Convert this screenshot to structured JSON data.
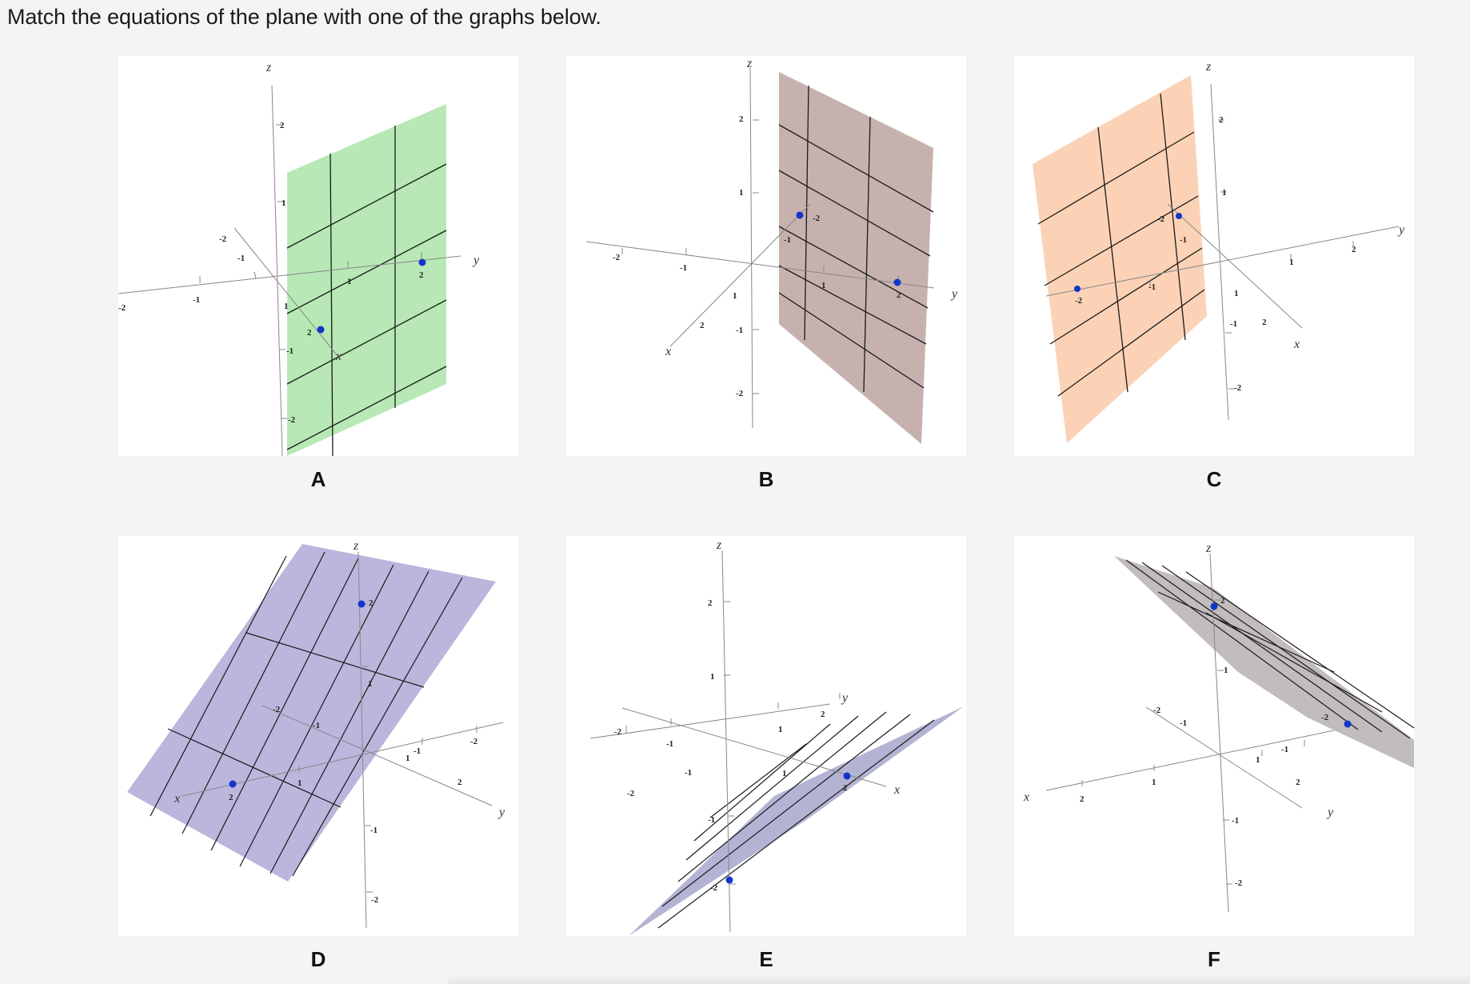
{
  "prompt": "Match the equations of the plane with one of the graphs below.",
  "graphs": [
    {
      "label": "A",
      "plane_color": "#b7e8b5",
      "axes": {
        "x": "x",
        "y": "y",
        "z": "z"
      },
      "ticks": [
        "2",
        "1",
        "-1",
        "-2",
        "-2",
        "-1",
        "1",
        "2",
        "1",
        "2",
        "-2",
        "-1",
        "2"
      ]
    },
    {
      "label": "B",
      "plane_color": "#c7b1af",
      "axes": {
        "x": "x",
        "y": "y",
        "z": "z"
      },
      "ticks": [
        "2",
        "1",
        "-1",
        "-2",
        "-2",
        "-1",
        "1",
        "2",
        "-2",
        "-1",
        "1",
        "2"
      ]
    },
    {
      "label": "C",
      "plane_color": "#fbd2b6",
      "axes": {
        "x": "x",
        "y": "y",
        "z": "z"
      },
      "ticks": [
        "2",
        "1",
        "-1",
        "-2",
        "-2",
        "-1",
        "1",
        "2",
        "-2",
        "-1",
        "1",
        "2"
      ]
    },
    {
      "label": "D",
      "plane_color": "#bbb6dc",
      "axes": {
        "x": "x",
        "y": "y",
        "z": "z"
      },
      "ticks": [
        "2",
        "1",
        "-1",
        "-2",
        "-2",
        "-1",
        "1",
        "2",
        "-2",
        "-1",
        "1",
        "2"
      ]
    },
    {
      "label": "E",
      "plane_color": "#b3b4d3",
      "axes": {
        "x": "x",
        "y": "y",
        "z": "z"
      },
      "ticks": [
        "2",
        "1",
        "-1",
        "-2",
        "-2",
        "-1",
        "1",
        "2",
        "-2",
        "-1",
        "1",
        "2"
      ]
    },
    {
      "label": "F",
      "plane_color": "#c2bcbc",
      "axes": {
        "x": "x",
        "y": "y",
        "z": "z"
      },
      "ticks": [
        "2",
        "1",
        "-1",
        "-2",
        "-2",
        "-1",
        "1",
        "2",
        "-2",
        "-1",
        "1",
        "2"
      ]
    }
  ],
  "point_color": "#1336c9"
}
